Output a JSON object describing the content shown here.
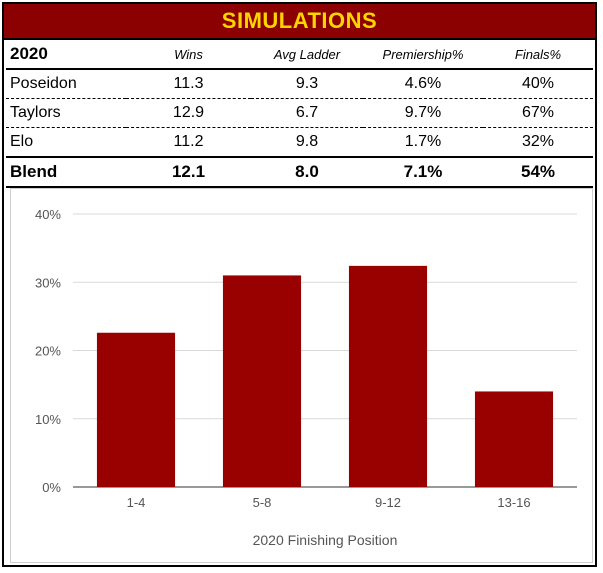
{
  "colors": {
    "banner_bg": "#8b0000",
    "banner_text": "#ffd500",
    "bar": "#990000",
    "grid": "#d9d9d9",
    "axis_text": "#555555"
  },
  "banner": {
    "title": "SIMULATIONS"
  },
  "table": {
    "year": "2020",
    "columns": [
      "Wins",
      "Avg Ladder",
      "Premiership%",
      "Finals%"
    ],
    "rows": [
      {
        "name": "Poseidon",
        "wins": "11.3",
        "avg_ladder": "9.3",
        "premiership": "4.6%",
        "finals": "40%"
      },
      {
        "name": "Taylors",
        "wins": "12.9",
        "avg_ladder": "6.7",
        "premiership": "9.7%",
        "finals": "67%"
      },
      {
        "name": "Elo",
        "wins": "11.2",
        "avg_ladder": "9.8",
        "premiership": "1.7%",
        "finals": "32%"
      }
    ],
    "blend": {
      "name": "Blend",
      "wins": "12.1",
      "avg_ladder": "8.0",
      "premiership": "7.1%",
      "finals": "54%"
    }
  },
  "chart_data": {
    "type": "bar",
    "title": "",
    "categories": [
      "1-4",
      "5-8",
      "9-12",
      "13-16"
    ],
    "values": [
      22.6,
      31.0,
      32.4,
      14.0
    ],
    "xlabel": "2020 Finishing Position",
    "ylabel": "",
    "ylim": [
      0,
      40
    ],
    "yticks": [
      0,
      10,
      20,
      30,
      40
    ],
    "ytick_labels": [
      "0%",
      "10%",
      "20%",
      "30%",
      "40%"
    ],
    "grid": true,
    "legend": "none"
  }
}
